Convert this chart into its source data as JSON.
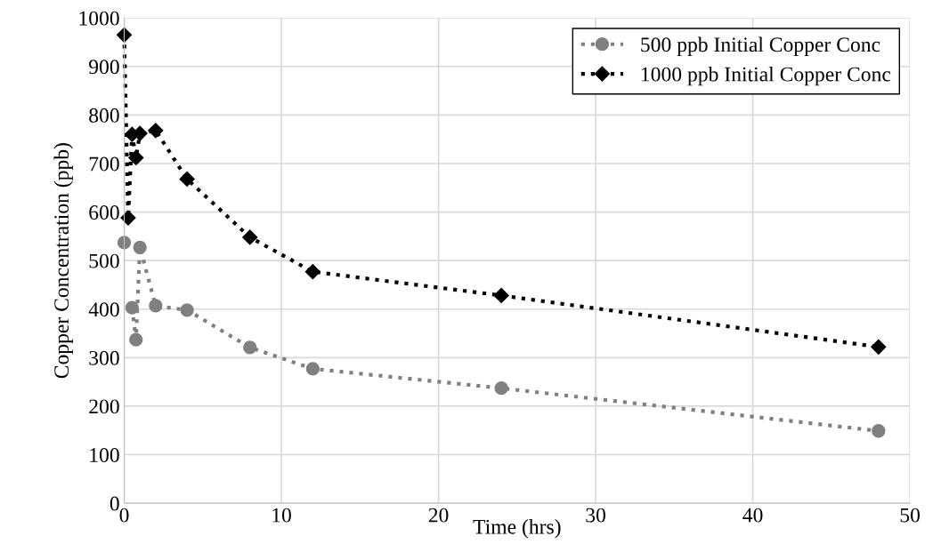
{
  "chart_data": {
    "type": "line",
    "xlabel": "Time (hrs)",
    "ylabel": "Copper Concentration (ppb)",
    "x": [
      0,
      0.25,
      0.5,
      0.75,
      1,
      2,
      4,
      8,
      12,
      24,
      48
    ],
    "series": [
      {
        "name": "500 ppb Initial Copper Conc",
        "color": "#808080",
        "marker": "circle",
        "values": [
          537,
          null,
          403,
          337,
          527,
          407,
          398,
          321,
          277,
          237,
          149
        ]
      },
      {
        "name": "1000 ppb Initial Copper Conc",
        "color": "#000000",
        "marker": "diamond",
        "values": [
          965,
          588,
          760,
          712,
          762,
          768,
          668,
          548,
          477,
          428,
          322
        ]
      }
    ],
    "xlim": [
      0,
      50
    ],
    "xticks": [
      0,
      10,
      20,
      30,
      40,
      50
    ],
    "ylim": [
      0,
      1000
    ],
    "yticks": [
      0,
      100,
      200,
      300,
      400,
      500,
      600,
      700,
      800,
      900,
      1000
    ],
    "grid": true,
    "legend": "top right",
    "line_style": "dotted"
  }
}
